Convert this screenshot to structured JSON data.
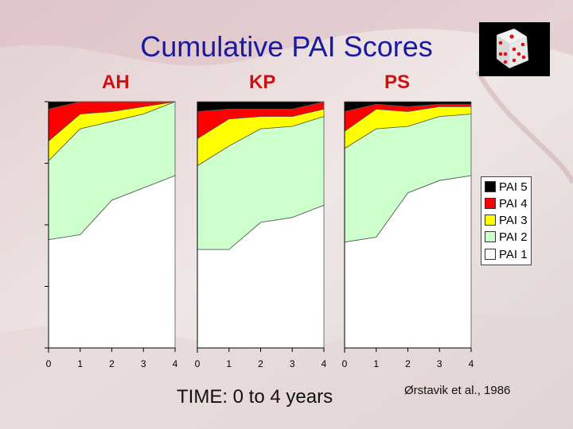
{
  "title": "Cumulative PAI Scores",
  "panel_labels": [
    "AH",
    "KP",
    "PS"
  ],
  "x_axis_title": "TIME: 0 to 4 years",
  "citation": "Ørstavik et al., 1986",
  "icon": "dice-icon",
  "colors": {
    "title": "#1a1aa0",
    "panel_label": "#cc1111",
    "PAI 5": "#000000",
    "PAI 4": "#ff0000",
    "PAI 3": "#ffff00",
    "PAI 2": "#ccffcc",
    "PAI 1": "#ffffff"
  },
  "chart_data": [
    {
      "type": "area",
      "stacked": true,
      "title": "AH",
      "x": [
        0,
        1,
        2,
        3,
        4
      ],
      "xlim": [
        0,
        4
      ],
      "ylim": [
        0,
        100
      ],
      "legend_position": "right",
      "series": [
        {
          "name": "PAI 1",
          "values": [
            44,
            46,
            60,
            65,
            70
          ]
        },
        {
          "name": "PAI 2",
          "values": [
            32,
            43,
            32,
            30,
            30
          ]
        },
        {
          "name": "PAI 3",
          "values": [
            8,
            6,
            4,
            3,
            0
          ]
        },
        {
          "name": "PAI 4",
          "values": [
            13,
            5,
            4,
            2,
            0
          ]
        },
        {
          "name": "PAI 5",
          "values": [
            3,
            0,
            0,
            0,
            0
          ]
        }
      ]
    },
    {
      "type": "area",
      "stacked": true,
      "title": "KP",
      "x": [
        0,
        1,
        2,
        3,
        4
      ],
      "xlim": [
        0,
        4
      ],
      "ylim": [
        0,
        100
      ],
      "series": [
        {
          "name": "PAI 1",
          "values": [
            40,
            40,
            51,
            53,
            58
          ]
        },
        {
          "name": "PAI 2",
          "values": [
            34,
            42,
            38,
            37,
            36
          ]
        },
        {
          "name": "PAI 3",
          "values": [
            11,
            11,
            5,
            4,
            3
          ]
        },
        {
          "name": "PAI 4",
          "values": [
            11,
            4,
            3,
            3,
            3
          ]
        },
        {
          "name": "PAI 5",
          "values": [
            4,
            3,
            3,
            3,
            0
          ]
        }
      ]
    },
    {
      "type": "area",
      "stacked": true,
      "title": "PS",
      "x": [
        0,
        1,
        2,
        3,
        4
      ],
      "xlim": [
        0,
        4
      ],
      "ylim": [
        0,
        100
      ],
      "series": [
        {
          "name": "PAI 1",
          "values": [
            43,
            45,
            63,
            68,
            70
          ]
        },
        {
          "name": "PAI 2",
          "values": [
            38,
            44,
            27,
            26,
            25
          ]
        },
        {
          "name": "PAI 3",
          "values": [
            7,
            8,
            6,
            4,
            3
          ]
        },
        {
          "name": "PAI 4",
          "values": [
            8,
            2,
            2,
            1,
            1
          ]
        },
        {
          "name": "PAI 5",
          "values": [
            4,
            1,
            2,
            1,
            1
          ]
        }
      ]
    }
  ]
}
